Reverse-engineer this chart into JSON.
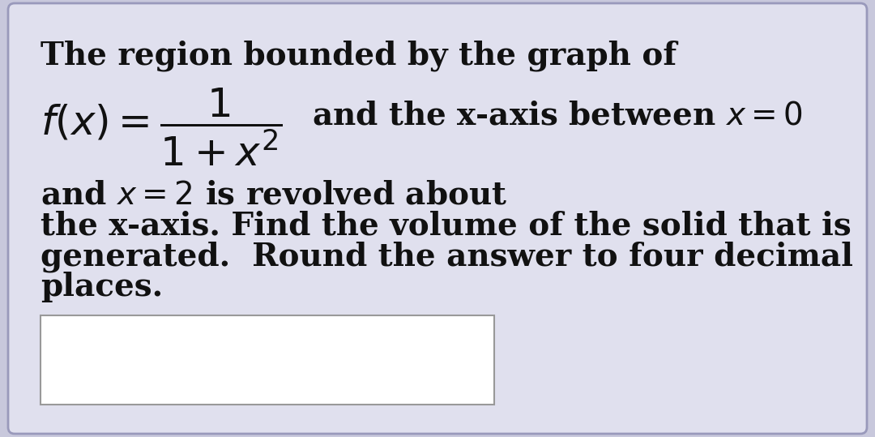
{
  "background_color": "#c8c8dc",
  "card_background": "#e0e0ee",
  "card_border_color": "#9999bb",
  "text_color": "#111111",
  "input_box_color": "#ffffff",
  "input_box_border": "#999999",
  "line1": "The region bounded by the graph of",
  "line_math_suffix": "and the x-axis between $x = 0$",
  "line3": "and $x = 2$ is revolved about",
  "line4": "the x-axis. Find the volume of the solid that is",
  "line5": "generated.  Round the answer to four decimal",
  "line6": "places.",
  "main_fontsize": 28,
  "math_fontsize": 30
}
